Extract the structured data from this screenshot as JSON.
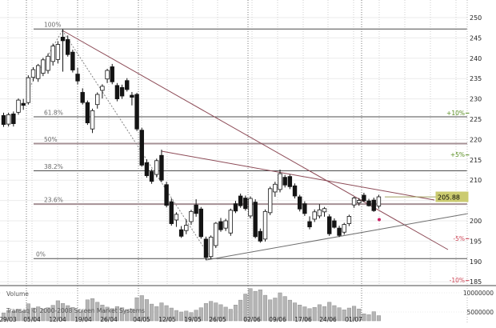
{
  "chart_data": {
    "type": "candlestick",
    "instrument_last_price": "205.88",
    "price_axis": {
      "ticks": [
        250,
        245,
        240,
        235,
        230,
        225,
        220,
        215,
        210,
        200,
        195,
        190,
        185
      ],
      "ymin": 183.5,
      "ymax": 252.5
    },
    "percent_levels": [
      {
        "label": "+10%",
        "price": 226.5,
        "color": "#568c1e"
      },
      {
        "label": "+5%",
        "price": 216.2,
        "color": "#568c1e"
      },
      {
        "label": "-5%",
        "price": 195.6,
        "color": "#cc4455"
      },
      {
        "label": "-10%",
        "price": 185.3,
        "color": "#cc4455"
      }
    ],
    "fib_levels": [
      {
        "label": "100%",
        "price": 247.2,
        "style": "major",
        "label_x": 55
      },
      {
        "label": "61.8%",
        "price": 225.6,
        "style": "major",
        "label_x": 55
      },
      {
        "label": "50%",
        "price": 219.0,
        "style": "band",
        "label_x": 55
      },
      {
        "label": "38.2%",
        "price": 212.3,
        "style": "major",
        "label_x": 55
      },
      {
        "label": "23.6%",
        "price": 204.1,
        "style": "band",
        "label_x": 55
      },
      {
        "label": "0%",
        "price": 190.7,
        "style": "major",
        "label_x": 45
      }
    ],
    "x_ticks": [
      {
        "label": "29/03",
        "x": 10
      },
      {
        "label": "05/04",
        "x": 40
      },
      {
        "label": "12/04",
        "x": 72
      },
      {
        "label": "19/04",
        "x": 104
      },
      {
        "label": "26/04",
        "x": 136
      },
      {
        "label": "04/05",
        "x": 177
      },
      {
        "label": "12/05",
        "x": 209
      },
      {
        "label": "19/05",
        "x": 241
      },
      {
        "label": "26/05",
        "x": 272
      },
      {
        "label": "02/06",
        "x": 315
      },
      {
        "label": "09/06",
        "x": 347
      },
      {
        "label": "17/06",
        "x": 379
      },
      {
        "label": "24/06",
        "x": 410
      },
      {
        "label": "01/07",
        "x": 442
      }
    ],
    "extra_gridlines_x": [
      474,
      506,
      538,
      570
    ],
    "month_separators_x": [
      33,
      97,
      173,
      310,
      452
    ],
    "trendlines": [
      {
        "name": "primary-downtrend",
        "x1": 78,
        "y1": 38,
        "x2": 560,
        "y2": 312,
        "color": "#8c4a56",
        "dotted": false
      },
      {
        "name": "secondary-downtrend",
        "x1": 202,
        "y1": 189,
        "x2": 543,
        "y2": 250,
        "color": "#8c4a56",
        "dotted": false
      },
      {
        "name": "rising-support",
        "x1": 258,
        "y1": 325,
        "x2": 585,
        "y2": 267,
        "color": "#6e6e6e",
        "dotted": false
      },
      {
        "name": "zigzag-up",
        "x1": 33,
        "y1": 116,
        "x2": 78,
        "y2": 38,
        "color": "#828282",
        "dotted": true
      },
      {
        "name": "zigzag-down",
        "x1": 78,
        "y1": 38,
        "x2": 263,
        "y2": 322,
        "color": "#828282",
        "dotted": true
      }
    ],
    "last_price_line": {
      "price": 205.88,
      "x_start": 481
    },
    "marker_dot": {
      "x": 474,
      "price": 200.3,
      "color": "#cc2266"
    },
    "candles": {
      "columns": [
        "open",
        "high",
        "low",
        "close",
        "volume_millions"
      ],
      "rows": [
        [
          225.9,
          226.6,
          223.1,
          223.7,
          2.6
        ],
        [
          223.8,
          226.6,
          223.2,
          226.1,
          3.4
        ],
        [
          226.3,
          226.9,
          223.2,
          223.9,
          3.1
        ],
        [
          226.7,
          230.1,
          226.1,
          229.7,
          3.8
        ],
        [
          228.9,
          230.0,
          227.3,
          228.4,
          3.2
        ],
        [
          229.1,
          235.8,
          228.6,
          235.2,
          5.6
        ],
        [
          235.3,
          237.8,
          234.4,
          237.2,
          4.2
        ],
        [
          235.0,
          238.6,
          234.2,
          238.2,
          4.6
        ],
        [
          236.3,
          240.1,
          235.6,
          239.6,
          3.9
        ],
        [
          237.0,
          241.2,
          236.2,
          240.5,
          4.3
        ],
        [
          239.2,
          243.6,
          238.2,
          243.0,
          5.1
        ],
        [
          239.7,
          244.2,
          238.7,
          243.4,
          6.6
        ],
        [
          245.2,
          247.2,
          236.7,
          244.3,
          5.7
        ],
        [
          244.6,
          245.6,
          240.4,
          240.9,
          5.0
        ],
        [
          241.5,
          242.1,
          236.5,
          237.1,
          4.4
        ],
        [
          236.1,
          237.6,
          233.6,
          234.4,
          3.7
        ],
        [
          231.6,
          232.6,
          228.6,
          229.1,
          3.3
        ],
        [
          229.1,
          229.6,
          223.6,
          224.1,
          6.9
        ],
        [
          222.6,
          227.6,
          221.6,
          227.1,
          7.3
        ],
        [
          228.6,
          231.6,
          227.6,
          231.1,
          6.1
        ],
        [
          232.1,
          233.6,
          230.1,
          233.1,
          5.2
        ],
        [
          234.9,
          237.4,
          233.9,
          237.0,
          4.5
        ],
        [
          237.9,
          238.6,
          233.6,
          234.2,
          4.0
        ],
        [
          233.3,
          233.9,
          229.4,
          230.0,
          4.7
        ],
        [
          232.8,
          233.5,
          230.0,
          230.7,
          4.3
        ],
        [
          234.5,
          235.1,
          231.8,
          232.3,
          3.6
        ],
        [
          230.9,
          231.7,
          228.4,
          230.4,
          3.9
        ],
        [
          231.1,
          231.5,
          222.1,
          222.6,
          7.6
        ],
        [
          222.3,
          222.9,
          213.3,
          213.7,
          8.3
        ],
        [
          214.3,
          215.1,
          210.6,
          211.1,
          7.0
        ],
        [
          212.1,
          212.7,
          209.1,
          209.7,
          5.5
        ],
        [
          211.4,
          215.3,
          210.7,
          214.8,
          4.7
        ],
        [
          216.1,
          217.5,
          209.5,
          210.0,
          5.9
        ],
        [
          208.9,
          209.6,
          203.3,
          203.8,
          5.0
        ],
        [
          204.7,
          205.5,
          198.8,
          199.3,
          4.2
        ],
        [
          200.2,
          202.1,
          198.5,
          201.6,
          3.4
        ],
        [
          197.8,
          198.7,
          195.8,
          196.2,
          2.9
        ],
        [
          197.6,
          200.4,
          196.7,
          198.9,
          3.2
        ],
        [
          199.8,
          202.7,
          199.0,
          202.3,
          2.7
        ],
        [
          203.9,
          205.3,
          201.0,
          201.8,
          3.5
        ],
        [
          202.9,
          203.4,
          195.6,
          196.1,
          4.3
        ],
        [
          195.5,
          196.1,
          190.3,
          191.0,
          5.7
        ],
        [
          191.2,
          196.4,
          190.6,
          196.0,
          6.4
        ],
        [
          193.9,
          199.7,
          193.3,
          199.4,
          5.9
        ],
        [
          199.8,
          200.7,
          197.3,
          197.8,
          5.3
        ],
        [
          198.2,
          200.5,
          197.5,
          200.0,
          4.5
        ],
        [
          197.0,
          203.0,
          196.3,
          202.6,
          3.8
        ],
        [
          204.2,
          204.9,
          201.9,
          202.4,
          5.2
        ],
        [
          206.1,
          206.7,
          203.2,
          203.7,
          6.8
        ],
        [
          205.6,
          206.2,
          202.5,
          203.0,
          8.8
        ],
        [
          201.2,
          206.0,
          200.6,
          205.5,
          10.6
        ],
        [
          204.6,
          205.3,
          195.7,
          196.1,
          9.7
        ],
        [
          197.4,
          198.1,
          194.6,
          195.0,
          10.2
        ],
        [
          195.5,
          202.8,
          194.9,
          202.3,
          8.4
        ],
        [
          202.0,
          208.4,
          201.4,
          207.9,
          6.9
        ],
        [
          207.1,
          209.6,
          205.9,
          209.0,
          7.5
        ],
        [
          207.7,
          212.6,
          207.0,
          211.6,
          9.2
        ],
        [
          210.7,
          211.3,
          208.2,
          208.8,
          8.0
        ],
        [
          210.9,
          211.4,
          207.8,
          208.4,
          6.8
        ],
        [
          208.6,
          209.2,
          205.5,
          206.1,
          5.9
        ],
        [
          205.9,
          206.4,
          202.3,
          202.9,
          5.2
        ],
        [
          204.2,
          204.8,
          201.2,
          201.8,
          4.6
        ],
        [
          199.8,
          201.1,
          197.9,
          198.5,
          4.0
        ],
        [
          200.4,
          202.8,
          199.7,
          202.2,
          4.4
        ],
        [
          201.2,
          204.1,
          200.6,
          202.7,
          5.3
        ],
        [
          202.2,
          203.4,
          201.0,
          203.0,
          4.7
        ],
        [
          201.0,
          201.6,
          196.3,
          196.8,
          6.1
        ],
        [
          200.0,
          200.6,
          198.1,
          198.4,
          5.0
        ],
        [
          198.2,
          198.8,
          196.0,
          196.4,
          4.3
        ],
        [
          197.2,
          199.5,
          196.6,
          199.1,
          3.6
        ],
        [
          199.3,
          201.5,
          198.7,
          201.1,
          4.2
        ],
        [
          203.9,
          205.9,
          203.2,
          205.6,
          4.8
        ],
        [
          204.4,
          205.6,
          203.7,
          205.0,
          3.9
        ],
        [
          206.3,
          206.9,
          204.6,
          204.9,
          2.3
        ],
        [
          204.9,
          205.4,
          203.5,
          203.7,
          2.0
        ],
        [
          205.1,
          205.7,
          202.2,
          202.5,
          3.0
        ],
        [
          203.6,
          206.4,
          203.0,
          205.9,
          1.7
        ]
      ]
    },
    "volume_axis": {
      "labels": [
        "10000000",
        "5000000"
      ],
      "y": [
        366,
        390
      ]
    },
    "volume_panel_label": "Volume",
    "branding": "Transaq © 2000-2008 Screen Market Systems",
    "colors": {
      "up_candle": "#ffffff",
      "down_candle": "#141414",
      "candle_stroke": "#141414",
      "volume_bar": "#b5b5b5",
      "volume_bar_stroke": "#8f8f8f",
      "grid": "#ebebeb",
      "week_grid": "#cfcfcf",
      "month_grid": "#787878",
      "fib_major": "#4d4d4d",
      "fib_band": "#a59095",
      "badge_bg": "#cbcb70",
      "price_line": "#a0a060",
      "axis_line": "#b8b8b8",
      "separator": "#4a4a4a"
    }
  }
}
